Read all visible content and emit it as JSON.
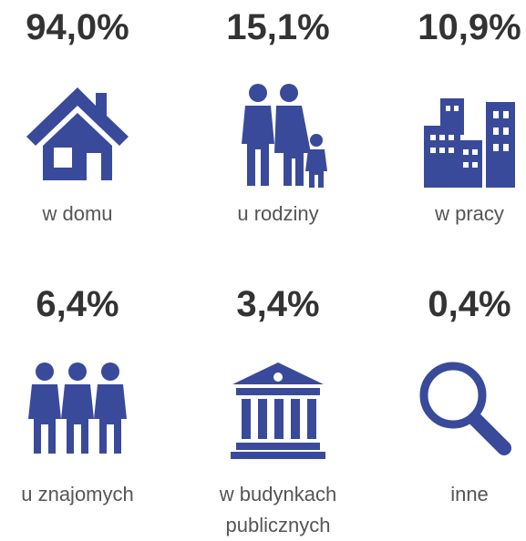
{
  "items": [
    {
      "percent": "94,0%",
      "label": "w domu"
    },
    {
      "percent": "15,1%",
      "label": "u rodziny"
    },
    {
      "percent": "10,9%",
      "label": "w pracy"
    },
    {
      "percent": "6,4%",
      "label": "u znajomych"
    },
    {
      "percent": "3,4%",
      "label": "w budynkach publicznych"
    },
    {
      "percent": "0,4%",
      "label": "inne"
    }
  ]
}
